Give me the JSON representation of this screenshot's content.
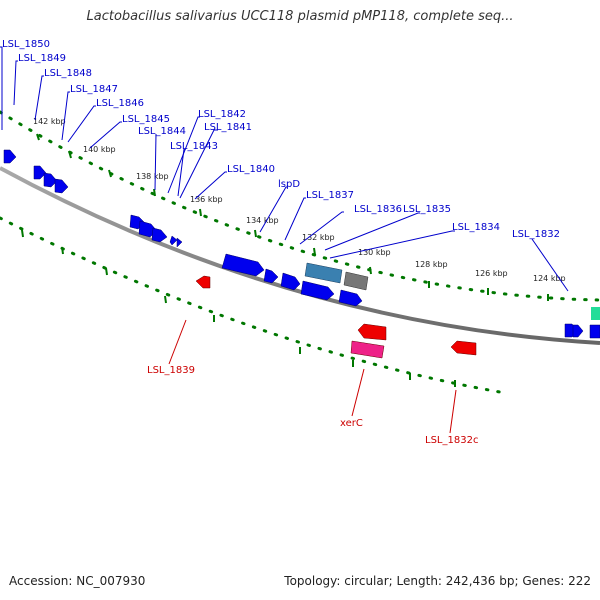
{
  "title": "Lactobacillus salivarius UCC118 plasmid pMP118, complete seq...",
  "footer": {
    "accession": "Accession: NC_007930",
    "summary": "Topology: circular; Length: 242,436 bp; Genes: 222"
  },
  "colors": {
    "forward_gene": "#0000ee",
    "reverse_gene": "#ee0000",
    "xerC_gene": "#ee2288",
    "teal_gene": "#3a80b0",
    "gray_gene": "#777777",
    "green_gene": "#22dd99",
    "backbone": "#888888",
    "tick": "#007700"
  },
  "ticks": [
    "124 kbp",
    "126 kbp",
    "128 kbp",
    "130 kbp",
    "132 kbp",
    "134 kbp",
    "136 kbp",
    "138 kbp",
    "140 kbp",
    "142 kbp"
  ],
  "gene_labels_forward": [
    "LSL_1850",
    "LSL_1849",
    "LSL_1848",
    "LSL_1847",
    "LSL_1846",
    "LSL_1845",
    "LSL_1844",
    "LSL_1842",
    "LSL_1841",
    "LSL_1843",
    "LSL_1840",
    "lspD",
    "LSL_1837",
    "LSL_1836",
    "LSL_1835",
    "LSL_1834",
    "LSL_1832"
  ],
  "gene_labels_reverse": [
    "LSL_1839",
    "xerC",
    "LSL_1832c"
  ]
}
